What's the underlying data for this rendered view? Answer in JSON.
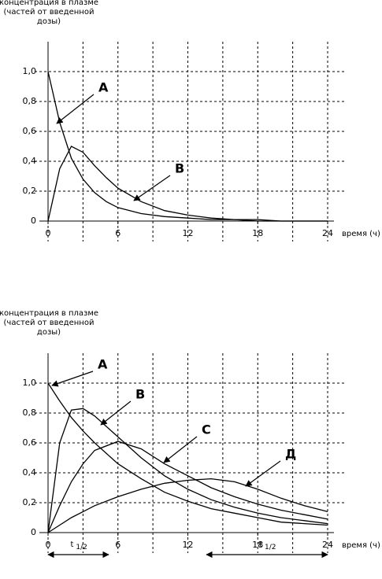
{
  "chart_data": [
    {
      "type": "line",
      "ylabel": [
        "концентрация в плазме",
        "(частей от введенной",
        "дозы)"
      ],
      "xlabel": "время (ч)",
      "x": [
        0,
        1,
        2,
        3,
        4,
        5,
        6,
        8,
        10,
        12,
        14,
        16,
        18,
        20,
        22,
        24
      ],
      "xlim": [
        0,
        24
      ],
      "xticks": [
        0,
        6,
        12,
        18,
        24
      ],
      "xgrid": [
        0,
        3,
        6,
        9,
        12,
        15,
        18,
        21,
        24
      ],
      "ylim": [
        0,
        1.2
      ],
      "yticks": [
        0,
        {
          "value": 0.2,
          "label": "0,2"
        },
        {
          "value": 0.4,
          "label": "0,4"
        },
        {
          "value": 0.6,
          "label": "0,6"
        },
        {
          "value": 0.8,
          "label": "0,8"
        },
        {
          "value": 1.0,
          "label": "1,0"
        }
      ],
      "grid": true,
      "series": [
        {
          "name": "А",
          "color": "#000000",
          "values": [
            1.0,
            0.66,
            0.42,
            0.28,
            0.19,
            0.13,
            0.09,
            0.05,
            0.03,
            0.02,
            0.01,
            0.01,
            0,
            0,
            0,
            0
          ]
        },
        {
          "name": "В",
          "color": "#000000",
          "values": [
            0,
            0.35,
            0.5,
            0.46,
            0.37,
            0.29,
            0.22,
            0.13,
            0.07,
            0.04,
            0.02,
            0.01,
            0.01,
            0,
            0,
            0
          ]
        }
      ]
    },
    {
      "type": "line",
      "ylabel": [
        "концентрация в плазме",
        "(частей от введенной",
        "дозы)"
      ],
      "xlabel": "время (ч)",
      "x": [
        0,
        1,
        2,
        3,
        4,
        6,
        8,
        10,
        12,
        14,
        16,
        18,
        20,
        22,
        24
      ],
      "xlim": [
        0,
        24
      ],
      "xticks": [
        0,
        6,
        12,
        18,
        24
      ],
      "xgrid": [
        0,
        3,
        6,
        9,
        12,
        15,
        18,
        21,
        24
      ],
      "ylim": [
        0,
        1.2
      ],
      "yticks": [
        0,
        {
          "value": 0.2,
          "label": "0,2"
        },
        {
          "value": 0.4,
          "label": "0,4"
        },
        {
          "value": 0.6,
          "label": "0,6"
        },
        {
          "value": 0.8,
          "label": "0,8"
        },
        {
          "value": 1.0,
          "label": "1,0"
        }
      ],
      "grid": true,
      "series": [
        {
          "name": "А",
          "color": "#000000",
          "values": [
            1.0,
            0.88,
            0.77,
            0.68,
            0.6,
            0.46,
            0.36,
            0.27,
            0.21,
            0.16,
            0.13,
            0.1,
            0.07,
            0.06,
            0.05
          ]
        },
        {
          "name": "В",
          "color": "#000000",
          "values": [
            0,
            0.6,
            0.82,
            0.83,
            0.78,
            0.64,
            0.5,
            0.38,
            0.29,
            0.22,
            0.17,
            0.13,
            0.1,
            0.08,
            0.06
          ]
        },
        {
          "name": "С",
          "color": "#000000",
          "values": [
            0,
            0.18,
            0.34,
            0.46,
            0.55,
            0.61,
            0.56,
            0.46,
            0.38,
            0.3,
            0.24,
            0.19,
            0.15,
            0.12,
            0.09
          ]
        },
        {
          "name": "Д",
          "color": "#000000",
          "values": [
            0,
            0.05,
            0.1,
            0.14,
            0.18,
            0.24,
            0.29,
            0.33,
            0.35,
            0.36,
            0.34,
            0.29,
            0.23,
            0.18,
            0.14
          ]
        }
      ],
      "annotations": [
        {
          "label": "t",
          "subscript": "1/2",
          "x0": 0,
          "x1": 5.2
        },
        {
          "label": "t",
          "subscript": "1/2",
          "x0": 13.6,
          "x1": 24
        }
      ]
    }
  ]
}
